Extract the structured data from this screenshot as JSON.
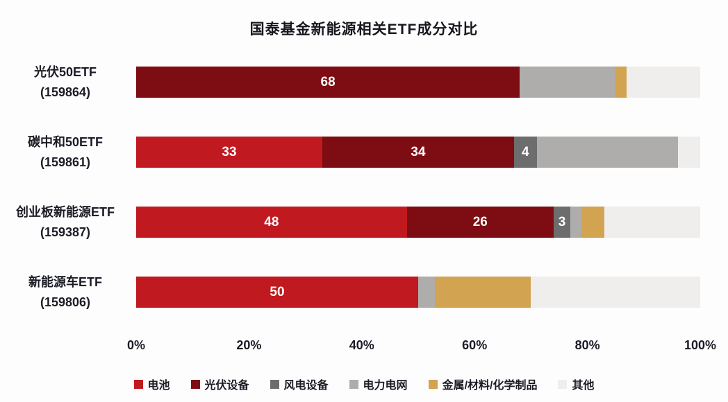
{
  "chart_data": {
    "type": "bar",
    "orientation": "horizontal",
    "stacked": true,
    "unit": "%",
    "title": "国泰基金新能源相关ETF成分对比",
    "categories": [
      {
        "name": "光伏50ETF",
        "code": "(159864)"
      },
      {
        "name": "碳中和50ETF",
        "code": "(159861)"
      },
      {
        "name": "创业板新能源ETF",
        "code": "(159387)"
      },
      {
        "name": "新能源车ETF",
        "code": "(159806)"
      }
    ],
    "series": [
      {
        "name": "电池",
        "color": "#c11920",
        "data_labels": true,
        "values": [
          0,
          33,
          48,
          50
        ]
      },
      {
        "name": "光伏设备",
        "color": "#7d0d12",
        "data_labels": true,
        "values": [
          68,
          34,
          26,
          0
        ]
      },
      {
        "name": "风电设备",
        "color": "#6d6d6d",
        "data_labels": true,
        "values": [
          0,
          4,
          3,
          0
        ]
      },
      {
        "name": "电力电网",
        "color": "#aeadab",
        "data_labels": false,
        "values": [
          17,
          25,
          2,
          3
        ]
      },
      {
        "name": "金属/材料/化学制品",
        "color": "#d2a351",
        "data_labels": false,
        "values": [
          2,
          0,
          4,
          17
        ]
      },
      {
        "name": "其他",
        "color": "#efeeec",
        "data_labels": false,
        "values": [
          13,
          4,
          17,
          30
        ]
      }
    ],
    "x_ticks": [
      "0%",
      "20%",
      "40%",
      "60%",
      "80%",
      "100%"
    ],
    "xlim": [
      0,
      100
    ],
    "grid": false,
    "legend_position": "bottom"
  }
}
